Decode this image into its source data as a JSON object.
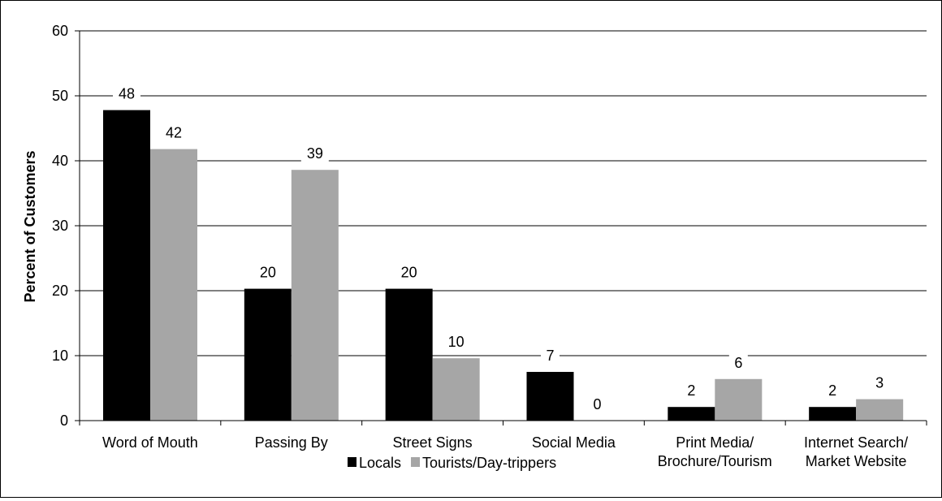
{
  "chart_data": {
    "type": "bar",
    "title": "",
    "xlabel": "",
    "ylabel": "Percent of Customers",
    "ylim": [
      0,
      60
    ],
    "yticks": [
      0,
      10,
      20,
      30,
      40,
      50,
      60
    ],
    "grid": true,
    "legend_position": "bottom",
    "categories": [
      [
        "Word of Mouth"
      ],
      [
        "Passing By"
      ],
      [
        "Street Signs"
      ],
      [
        "Social Media"
      ],
      [
        "Print Media/",
        "Brochure/Tourism"
      ],
      [
        "Internet Search/",
        "Market Website"
      ]
    ],
    "series": [
      {
        "name": "Locals",
        "color": "#000000",
        "values": [
          47.8,
          20.3,
          20.3,
          7.5,
          2.1,
          2.1
        ],
        "labels": [
          "48",
          "20",
          "20",
          "7",
          "2",
          "2"
        ]
      },
      {
        "name": "Tourists/Day-trippers",
        "color": "#a6a6a6",
        "values": [
          41.8,
          38.6,
          9.6,
          0,
          6.4,
          3.3
        ],
        "labels": [
          "42",
          "39",
          "10",
          "0",
          "6",
          "3"
        ]
      }
    ]
  }
}
